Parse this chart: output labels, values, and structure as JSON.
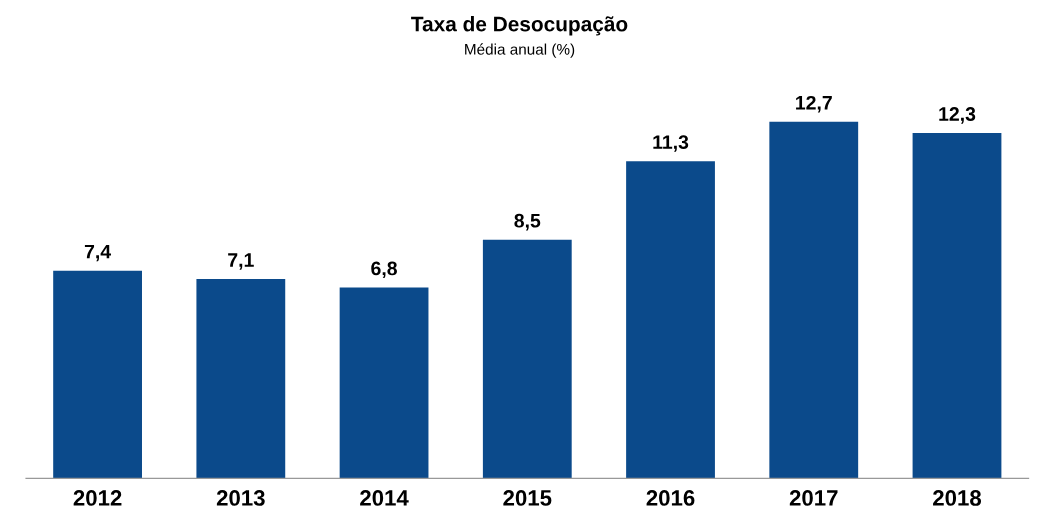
{
  "chart_data": {
    "type": "bar",
    "title": "Taxa de Desocupação",
    "subtitle": "Média anual (%)",
    "categories": [
      "2012",
      "2013",
      "2014",
      "2015",
      "2016",
      "2017",
      "2018"
    ],
    "values": [
      7.4,
      7.1,
      6.8,
      8.5,
      11.3,
      12.7,
      12.3
    ],
    "value_labels": [
      "7,4",
      "7,1",
      "6,8",
      "8,5",
      "11,3",
      "12,7",
      "12,3"
    ],
    "color": "#0b4a8b",
    "tick_labels": "x",
    "grid": false,
    "legend": false
  }
}
